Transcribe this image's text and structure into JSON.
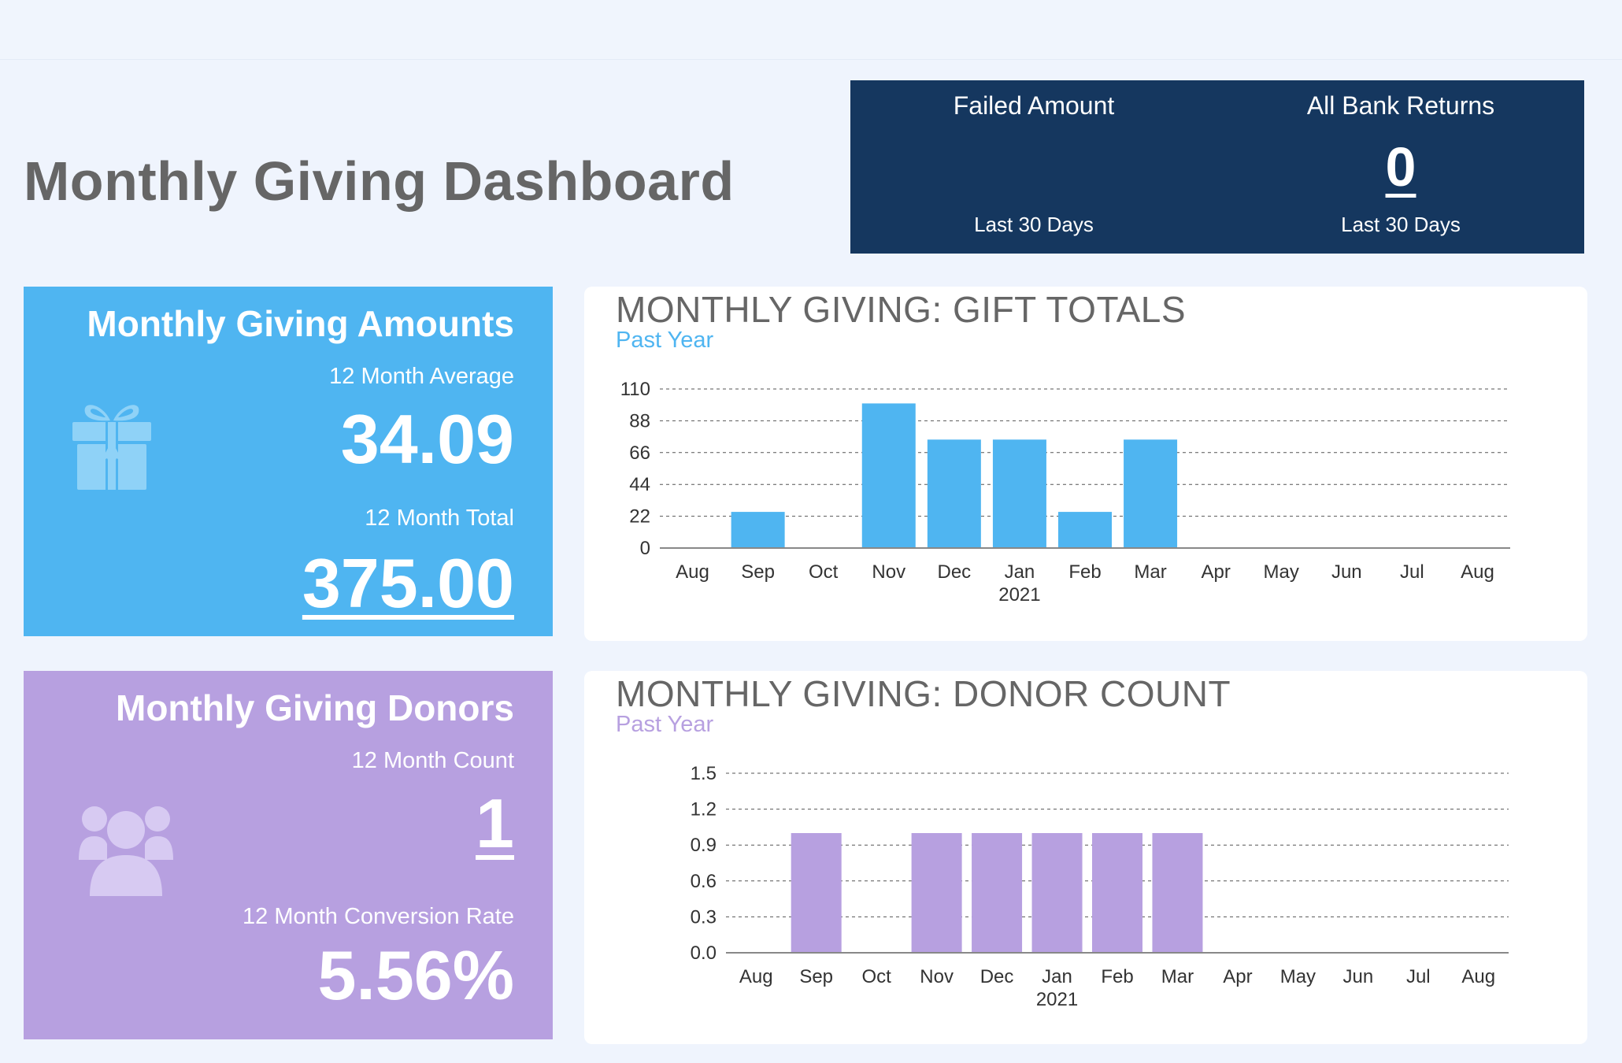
{
  "header": {
    "title": "Monthly Giving Dashboard"
  },
  "stats_panel": {
    "failed": {
      "title": "Failed Amount",
      "value": "",
      "period": "Last 30 Days"
    },
    "bank_returns": {
      "title": "All Bank Returns",
      "value": "0",
      "period": "Last 30 Days"
    }
  },
  "amounts_card": {
    "title": "Monthly Giving Amounts",
    "icon": "gift-icon",
    "average_label": "12 Month Average",
    "average_value": "34.09",
    "total_label": "12 Month Total",
    "total_value": "375.00"
  },
  "donors_card": {
    "title": "Monthly Giving Donors",
    "icon": "users-icon",
    "count_label": "12 Month Count",
    "count_value": "1",
    "rate_label": "12 Month Conversion Rate",
    "rate_value": "5.56%"
  },
  "colors": {
    "amounts_accent": "#4fb5f1",
    "donors_accent": "#b7a0e0",
    "stats_panel": "#15375f",
    "title_gray": "#666666"
  },
  "chart_data": [
    {
      "type": "bar",
      "title": "MONTHLY GIVING: GIFT TOTALS",
      "subtitle": "Past Year",
      "categories": [
        "Aug",
        "Sep",
        "Oct",
        "Nov",
        "Dec",
        "Jan",
        "Feb",
        "Mar",
        "Apr",
        "May",
        "Jun",
        "Jul",
        "Aug"
      ],
      "year_label": "2021",
      "year_label_index": 5,
      "values": [
        0,
        25,
        0,
        100,
        75,
        75,
        25,
        75,
        0,
        0,
        0,
        0,
        0
      ],
      "y_ticks": [
        "0",
        "22",
        "44",
        "66",
        "88",
        "110"
      ],
      "ylim": [
        0,
        110
      ],
      "grid": true,
      "color": "#4fb5f1"
    },
    {
      "type": "bar",
      "title": "MONTHLY GIVING: DONOR COUNT",
      "subtitle": "Past Year",
      "categories": [
        "Aug",
        "Sep",
        "Oct",
        "Nov",
        "Dec",
        "Jan",
        "Feb",
        "Mar",
        "Apr",
        "May",
        "Jun",
        "Jul",
        "Aug"
      ],
      "year_label": "2021",
      "year_label_index": 5,
      "values": [
        0,
        1,
        0,
        1,
        1,
        1,
        1,
        1,
        0,
        0,
        0,
        0,
        0
      ],
      "y_ticks": [
        "0.0",
        "0.3",
        "0.6",
        "0.9",
        "1.2",
        "1.5"
      ],
      "ylim": [
        0,
        1.5
      ],
      "grid": true,
      "color": "#b7a0e0"
    }
  ]
}
